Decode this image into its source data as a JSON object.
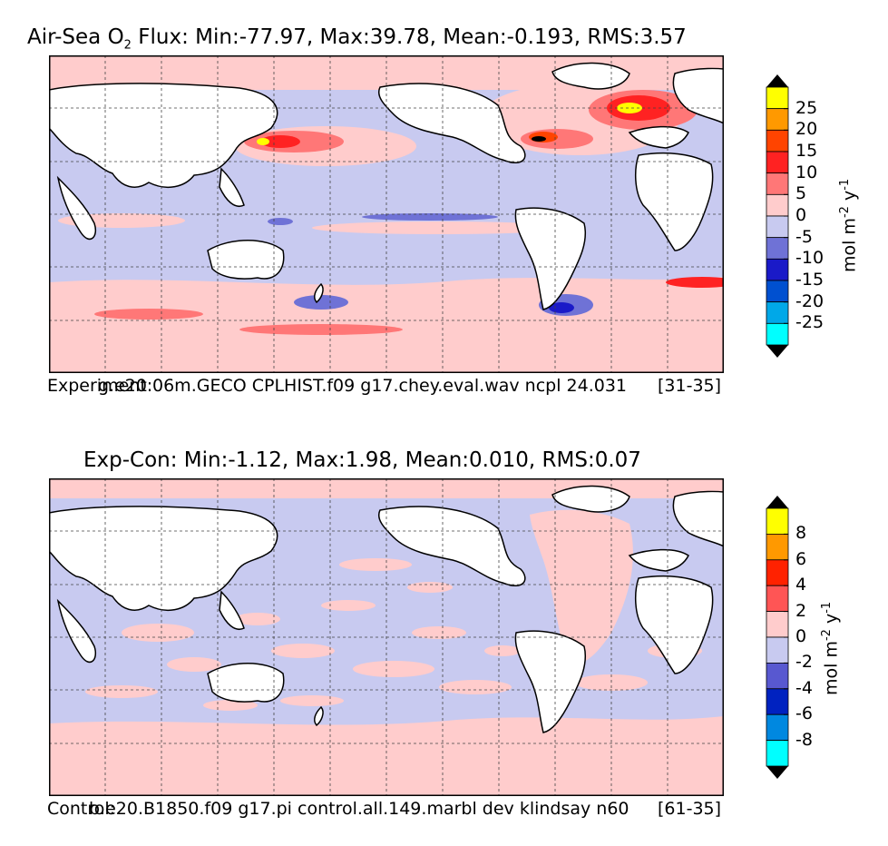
{
  "panels": [
    {
      "title_a": "Air-Sea O",
      "title_sub": "2",
      "title_b": " Flux: Min:-77.97, Max:39.78, Mean:-0.193, RMS:3.57",
      "footer_left": "Experiment:",
      "footer_case": "g.e20.06m.GECO CPLHIST.f09 g17.chey.eval.wav ncpl 24.031",
      "footer_right": "[31-35]",
      "colorbar": {
        "unit_a": "mol m",
        "unit_exp1": "-2",
        "unit_b": " y",
        "unit_exp2": "-1",
        "tick_labels": [
          "25",
          "20",
          "15",
          "10",
          "5",
          "0",
          "-5",
          "-10",
          "-15",
          "-20",
          "-25"
        ],
        "colors_top_to_bottom": [
          "#ffff00",
          "#ff9900",
          "#ff4400",
          "#ff2222",
          "#ff7777",
          "#ffcccc",
          "#c8caf0",
          "#6f72d6",
          "#1a1ac8",
          "#0050d0",
          "#00a8e8",
          "#00ffff"
        ],
        "extend_color": "#000000"
      }
    },
    {
      "title": "Exp-Con: Min:-1.12, Max:1.98, Mean:0.010, RMS:0.07",
      "footer_left": "Control:",
      "footer_case": "b.e20.B1850.f09 g17.pi control.all.149.marbl dev klindsay n60",
      "footer_right": "[61-35]",
      "colorbar": {
        "unit_a": "mol m",
        "unit_exp1": "-2",
        "unit_b": " y",
        "unit_exp2": "-1",
        "tick_labels": [
          "8",
          "6",
          "4",
          "2",
          "0",
          "-2",
          "-4",
          "-6",
          "-8"
        ],
        "colors_top_to_bottom": [
          "#ffff00",
          "#ff9900",
          "#ff2200",
          "#ff5555",
          "#ffcccc",
          "#c8caf0",
          "#5858d0",
          "#0022c0",
          "#0088e0",
          "#00ffff"
        ],
        "extend_color": "#000000"
      }
    }
  ]
}
